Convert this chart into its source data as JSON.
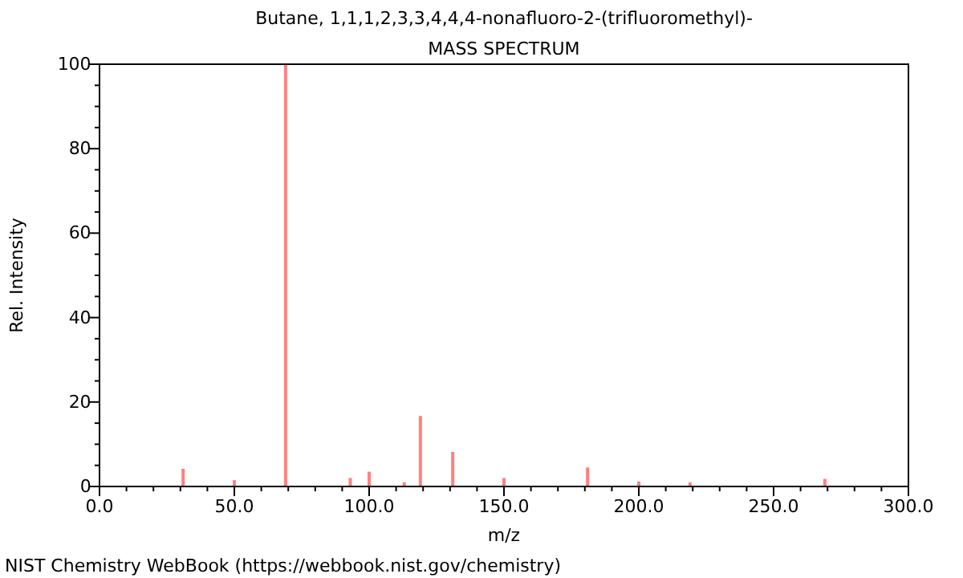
{
  "chart_data": {
    "type": "bar",
    "title": "Butane, 1,1,1,2,3,3,4,4,4-nonafluoro-2-(trifluoromethyl)-",
    "subtitle": "MASS SPECTRUM",
    "xlabel": "m/z",
    "ylabel": "Rel. Intensity",
    "x": [
      31,
      50,
      69,
      93,
      100,
      113,
      119,
      131,
      150,
      181,
      200,
      219,
      269
    ],
    "values": [
      4.2,
      1.5,
      100,
      2,
      3.5,
      1,
      16.7,
      8.2,
      2,
      4.5,
      1.2,
      1,
      1.8
    ],
    "color": "#ff8080",
    "xlim": [
      0,
      300
    ],
    "xticks": [
      {
        "value": 0,
        "label": "0.0"
      },
      {
        "value": 10,
        "label": null
      },
      {
        "value": 20,
        "label": null
      },
      {
        "value": 30,
        "label": null
      },
      {
        "value": 40,
        "label": null
      },
      {
        "value": 50,
        "label": "50.0"
      },
      {
        "value": 60,
        "label": null
      },
      {
        "value": 70,
        "label": null
      },
      {
        "value": 80,
        "label": null
      },
      {
        "value": 90,
        "label": null
      },
      {
        "value": 100,
        "label": "100.0"
      },
      {
        "value": 110,
        "label": null
      },
      {
        "value": 120,
        "label": null
      },
      {
        "value": 130,
        "label": null
      },
      {
        "value": 140,
        "label": null
      },
      {
        "value": 150,
        "label": "150.0"
      },
      {
        "value": 160,
        "label": null
      },
      {
        "value": 170,
        "label": null
      },
      {
        "value": 180,
        "label": null
      },
      {
        "value": 190,
        "label": null
      },
      {
        "value": 200,
        "label": "200.0"
      },
      {
        "value": 210,
        "label": null
      },
      {
        "value": 220,
        "label": null
      },
      {
        "value": 230,
        "label": null
      },
      {
        "value": 240,
        "label": null
      },
      {
        "value": 250,
        "label": "250.0"
      },
      {
        "value": 260,
        "label": null
      },
      {
        "value": 270,
        "label": null
      },
      {
        "value": 280,
        "label": null
      },
      {
        "value": 290,
        "label": null
      },
      {
        "value": 300,
        "label": "300.0"
      }
    ],
    "ylim": [
      0,
      100
    ],
    "yticks": [
      0,
      {
        "value": 5,
        "label": null
      },
      {
        "value": 10,
        "label": null
      },
      {
        "value": 15,
        "label": null
      },
      20,
      {
        "value": 25,
        "label": null
      },
      {
        "value": 30,
        "label": null
      },
      {
        "value": 35,
        "label": null
      },
      40,
      {
        "value": 45,
        "label": null
      },
      {
        "value": 50,
        "label": null
      },
      {
        "value": 55,
        "label": null
      },
      60,
      {
        "value": 65,
        "label": null
      },
      {
        "value": 70,
        "label": null
      },
      {
        "value": 75,
        "label": null
      },
      80,
      {
        "value": 85,
        "label": null
      },
      {
        "value": 90,
        "label": null
      },
      {
        "value": 95,
        "label": null
      },
      100
    ],
    "grid": false,
    "annotations": [
      "NIST Chemistry WebBook (https://webbook.nist.gov/chemistry)"
    ]
  }
}
